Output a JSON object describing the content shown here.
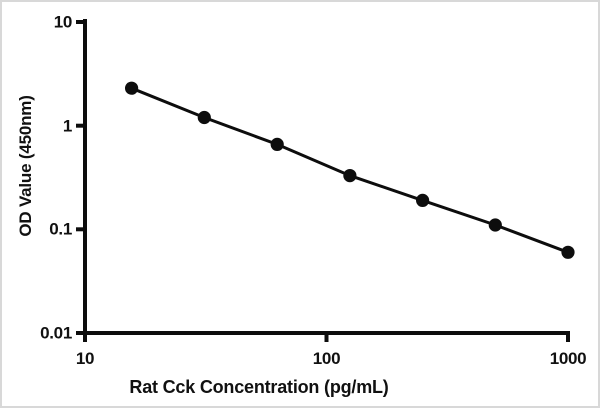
{
  "figure": {
    "background_color": "#ffffff",
    "border_color": "#d8d8d8",
    "text_color": "#111111"
  },
  "chart_data": {
    "type": "line",
    "title": "",
    "xlabel": "Rat Cck Concentration (pg/mL)",
    "ylabel": "OD Value (450nm)",
    "xscale": "log",
    "yscale": "log",
    "xlim": [
      10,
      1000
    ],
    "ylim": [
      0.01,
      10
    ],
    "grid": false,
    "legend": null,
    "axis_color": "#0d0d0d",
    "xticks": {
      "values": [
        10,
        100,
        1000
      ],
      "labels": [
        "10",
        "100",
        "1000"
      ]
    },
    "yticks": {
      "values": [
        10,
        1,
        0.1,
        0.01
      ],
      "labels": [
        "10",
        "1",
        "0.1",
        "0.01"
      ]
    },
    "series": [
      {
        "x": [
          15.6,
          31.2,
          62.5,
          125,
          250,
          500,
          1000
        ],
        "y": [
          2.3,
          1.2,
          0.66,
          0.33,
          0.19,
          0.11,
          0.06
        ],
        "marker": "filled-circle",
        "color": "#0d0d0d"
      }
    ]
  }
}
